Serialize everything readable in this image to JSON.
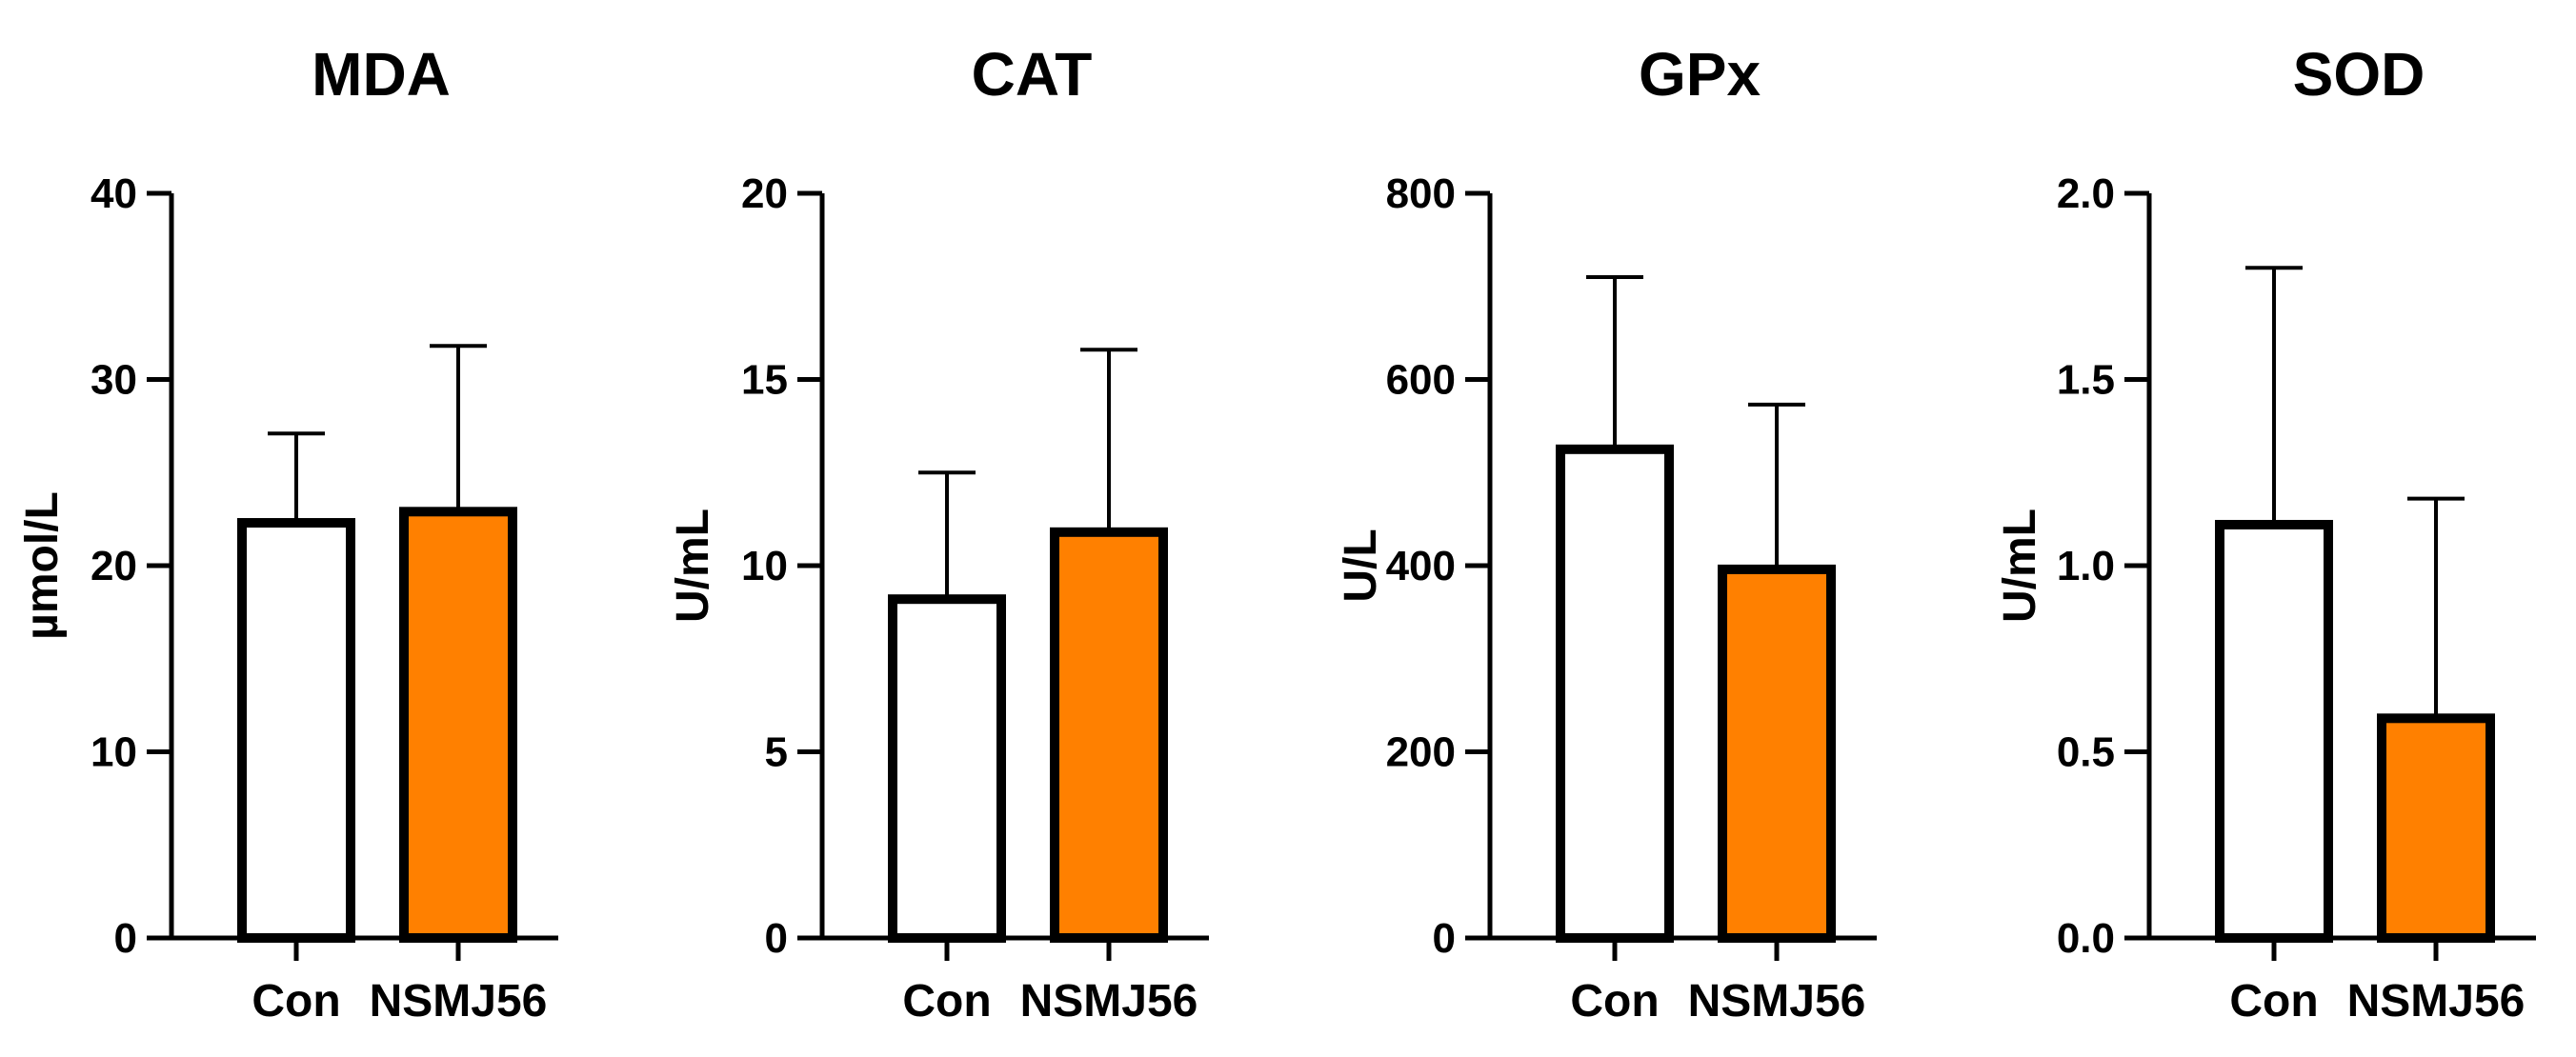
{
  "chart_data": [
    {
      "type": "bar",
      "title": "MDA",
      "ylabel": "µmol/L",
      "xlabel": "",
      "ylim": [
        0,
        40
      ],
      "yticks": [
        0,
        10,
        20,
        30,
        40
      ],
      "ytick_labels": [
        "0",
        "10",
        "20",
        "30",
        "40"
      ],
      "categories": [
        "Con",
        "NSMJ56"
      ],
      "values": [
        22.3,
        22.9
      ],
      "errors": [
        4.8,
        8.9
      ],
      "fills": [
        "#ffffff",
        "#ff8000"
      ]
    },
    {
      "type": "bar",
      "title": "CAT",
      "ylabel": "U/mL",
      "xlabel": "",
      "ylim": [
        0,
        20
      ],
      "yticks": [
        0,
        5,
        10,
        15,
        20
      ],
      "ytick_labels": [
        "0",
        "5",
        "10",
        "15",
        "20"
      ],
      "categories": [
        "Con",
        "NSMJ56"
      ],
      "values": [
        9.1,
        10.9
      ],
      "errors": [
        3.4,
        4.9
      ],
      "fills": [
        "#ffffff",
        "#ff8000"
      ]
    },
    {
      "type": "bar",
      "title": "GPx",
      "ylabel": "U/L",
      "xlabel": "",
      "ylim": [
        0,
        800
      ],
      "yticks": [
        0,
        200,
        400,
        600,
        800
      ],
      "ytick_labels": [
        "0",
        "200",
        "400",
        "600",
        "800"
      ],
      "categories": [
        "Con",
        "NSMJ56"
      ],
      "values": [
        525,
        396
      ],
      "errors": [
        185,
        177
      ],
      "fills": [
        "#ffffff",
        "#ff8000"
      ]
    },
    {
      "type": "bar",
      "title": "SOD",
      "ylabel": "U/mL",
      "xlabel": "",
      "ylim": [
        0,
        2.0
      ],
      "yticks": [
        0,
        0.5,
        1.0,
        1.5,
        2.0
      ],
      "ytick_labels": [
        "0.0",
        "0.5",
        "1.0",
        "1.5",
        "2.0"
      ],
      "categories": [
        "Con",
        "NSMJ56"
      ],
      "values": [
        1.11,
        0.59
      ],
      "errors": [
        0.69,
        0.59
      ],
      "fills": [
        "#ffffff",
        "#ff8000"
      ]
    }
  ]
}
